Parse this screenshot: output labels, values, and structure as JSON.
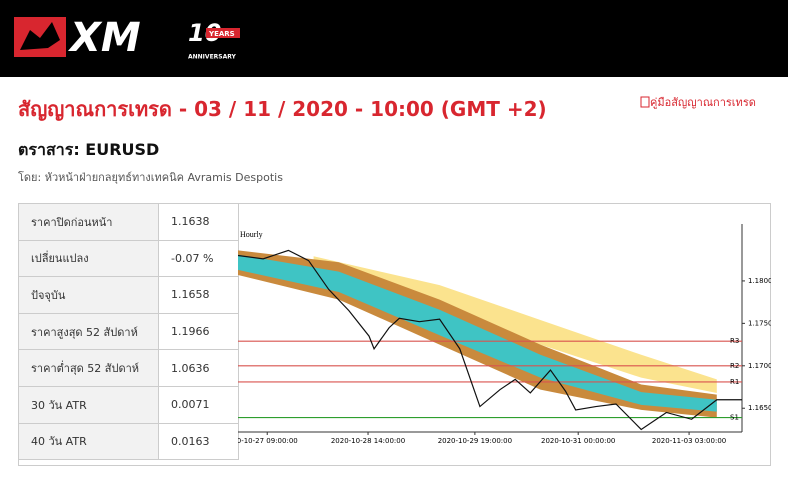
{
  "header": {
    "logo": {
      "brand": "XM",
      "badge": "10",
      "badge_sub": "YEARS",
      "badge_caption": "ANNIVERSARY"
    }
  },
  "page": {
    "title": "สัญญาณการเทรด - 03 / 11 / 2020 - 10:00 (GMT +2)",
    "guide_link": "คู่มือสัญญาณการเทรด",
    "instrument": "ตราสาร: EURUSD",
    "byline": "โดย: หัวหน้าฝ่ายกลยุทธ์ทางเทคนิค Avramis Despotis"
  },
  "table": {
    "rows": [
      [
        "ราคาปิดก่อนหน้า",
        "1.1638"
      ],
      [
        "เปลี่ยนแปลง",
        "-0.07 %"
      ],
      [
        "ปัจจุบัน",
        "1.1658"
      ],
      [
        "ราคาสูงสุด 52 สัปดาห์",
        "1.1966"
      ],
      [
        "ราคาต่ำสุด 52 สัปดาห์",
        "1.0636"
      ],
      [
        "30 วัน ATR",
        "0.0071"
      ],
      [
        "40 วัน ATR",
        "0.0163"
      ]
    ]
  },
  "chart_data": {
    "type": "line",
    "title": "Hourly",
    "xlim": [
      0,
      100
    ],
    "xticks": [
      {
        "value": 5.8,
        "label": "0-10-27 09:00:00"
      },
      {
        "value": 25.8,
        "label": "2020-10-28 14:00:00"
      },
      {
        "value": 47,
        "label": "2020-10-29 19:00:00"
      },
      {
        "value": 67.5,
        "label": "2020-10-31 00:00:00"
      },
      {
        "value": 89.5,
        "label": "2020-11-03 03:00:00"
      }
    ],
    "ylim": [
      1.1622,
      1.186
    ],
    "yticks": [
      {
        "value": 1.18,
        "label": "1.1800"
      },
      {
        "value": 1.175,
        "label": "1.1750"
      },
      {
        "value": 1.17,
        "label": "1.1700"
      },
      {
        "value": 1.165,
        "label": "1.1650"
      }
    ],
    "levels": [
      {
        "name": "R3",
        "value": 1.1729,
        "color": "#d9534f"
      },
      {
        "name": "R2",
        "value": 1.17,
        "color": "#d9534f"
      },
      {
        "name": "R1",
        "value": 1.1681,
        "color": "#d9534f"
      },
      {
        "name": "S1",
        "value": 1.1639,
        "color": "#2e9e2e"
      }
    ],
    "bands": [
      {
        "color": "#fbe38e",
        "x": [
          15,
          40,
          60,
          80,
          95
        ],
        "upper": [
          1.1829,
          1.1795,
          1.1754,
          1.1713,
          1.1684
        ],
        "lower": [
          1.1813,
          1.1766,
          1.1725,
          1.1686,
          1.1668
        ]
      },
      {
        "color": "#c98a3d",
        "x": [
          0,
          20,
          40,
          60,
          80,
          95
        ],
        "upper": [
          1.1836,
          1.1822,
          1.1778,
          1.1725,
          1.1678,
          1.1666
        ],
        "lower": [
          1.1807,
          1.1778,
          1.1725,
          1.1672,
          1.1648,
          1.1639
        ]
      },
      {
        "color": "#3fc4c4",
        "x": [
          0,
          20,
          40,
          60,
          80,
          95
        ],
        "upper": [
          1.1831,
          1.1811,
          1.1766,
          1.1713,
          1.1669,
          1.166
        ],
        "lower": [
          1.1813,
          1.1787,
          1.1736,
          1.1686,
          1.1654,
          1.1646
        ]
      }
    ],
    "series": [
      {
        "color": "#111111",
        "x": [
          0,
          5,
          10,
          14,
          18,
          22,
          26,
          27,
          30,
          32,
          36,
          40,
          44,
          48,
          52,
          55,
          58,
          62,
          65,
          67,
          71,
          75,
          80,
          85,
          90,
          95,
          100
        ],
        "values": [
          1.183,
          1.1826,
          1.1836,
          1.1824,
          1.179,
          1.1765,
          1.1735,
          1.172,
          1.1745,
          1.1756,
          1.1752,
          1.1755,
          1.172,
          1.1652,
          1.1672,
          1.1684,
          1.1668,
          1.1695,
          1.167,
          1.1648,
          1.1652,
          1.1655,
          1.1625,
          1.1645,
          1.1637,
          1.166,
          1.166
        ]
      }
    ]
  }
}
